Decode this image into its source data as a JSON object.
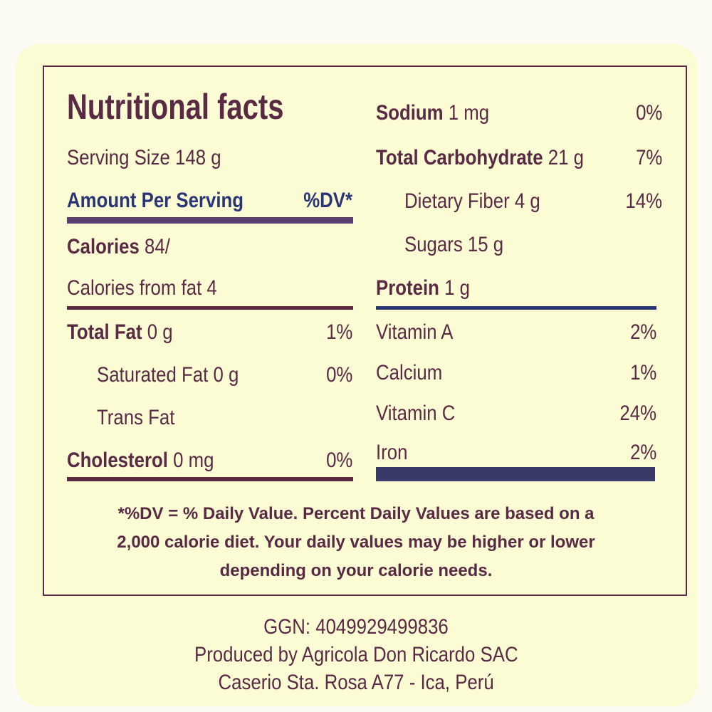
{
  "title": "Nutritional facts",
  "serving_size": "Serving Size 148 g",
  "amount_per_serving": "Amount Per Serving",
  "dv_header": "%DV*",
  "calories_label": "Calories",
  "calories_value": "84/",
  "calories_from_fat": "Calories from fat 4",
  "left_rows": [
    {
      "name": "Total Fat",
      "amount": "0 g",
      "dv": "1%"
    },
    {
      "name": "Saturated Fat 0 g",
      "dv": "0%"
    },
    {
      "name": "Trans Fat",
      "dv": ""
    },
    {
      "name": "Cholesterol",
      "amount": "0 mg",
      "dv": "0%"
    }
  ],
  "right_rows": [
    {
      "name": "Sodium",
      "amount": "1 mg",
      "dv": "0%"
    },
    {
      "name": "Total Carbohydrate",
      "amount": "21 g",
      "dv": "7%"
    },
    {
      "name": "Dietary Fiber 4 g",
      "dv": "14%"
    },
    {
      "name": "Sugars 15 g",
      "dv": ""
    },
    {
      "name": "Protein",
      "amount": "1 g",
      "dv": ""
    }
  ],
  "vitamins": [
    {
      "name": "Vitamin A",
      "dv": "2%"
    },
    {
      "name": "Calcium",
      "dv": "1%"
    },
    {
      "name": "Vitamin C",
      "dv": "24%"
    },
    {
      "name": "Iron",
      "dv": "2%"
    }
  ],
  "footnote": [
    "*%DV = % Daily Value. Percent Daily Values are based on a",
    "2,000 calorie diet. Your daily values may be higher or lower",
    "depending on your calorie needs."
  ],
  "ggn": "GGN: 4049929499836",
  "producer": "Produced by Agricola Don Ricardo SAC",
  "address": "Caserio Sta. Rosa A77 - Ica, Perú",
  "colors": {
    "text": "#5a2a44",
    "blue": "#2a3575",
    "label_bg": "#fbfbd4"
  }
}
